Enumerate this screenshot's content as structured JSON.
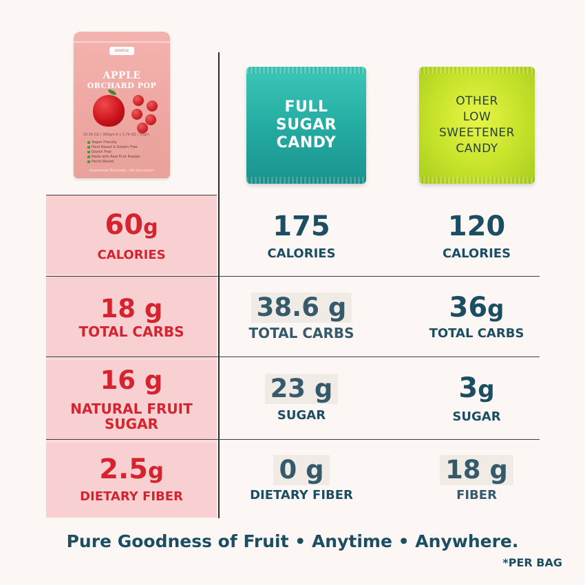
{
  "products": {
    "apple_bag": {
      "brand": "SIMPLE",
      "name_line1": "APPLE",
      "name_line2": "ORCHARD POP",
      "net_weight": "10.56 OZ / 300gm      6 x 1.76 OZ / 50gm",
      "claims": [
        "Vegan Friendly",
        "Plant Based & Gelatin Free",
        "Gluten Free",
        "Made with Real Fruit Powder",
        "Pectin-Based"
      ],
      "tagline": "Sweetened Naturally · No Sucralose!"
    },
    "full_sugar_bag": {
      "lines": [
        "FULL",
        "SUGAR",
        "CANDY"
      ]
    },
    "low_sweetener_bag": {
      "lines": [
        "OTHER",
        "LOW",
        "SWEETENER",
        "CANDY"
      ]
    }
  },
  "rows": [
    {
      "col1": {
        "value": "60",
        "unit": "g",
        "label": "CALORIES"
      },
      "col2": {
        "value": "175",
        "label": "CALORIES"
      },
      "col3": {
        "value": "120",
        "label": "CALORIES"
      }
    },
    {
      "col1": {
        "value": "18 g",
        "label": "TOTAL CARBS"
      },
      "col2": {
        "value": "38.6 g",
        "label": "TOTAL CARBS"
      },
      "col3": {
        "value": "36",
        "unit": "g",
        "label": "TOTAL CARBS"
      }
    },
    {
      "col1": {
        "value": "16 g",
        "label_line1": "NATURAL FRUIT",
        "label_line2": "SUGAR"
      },
      "col2": {
        "value": "23 g",
        "label": "SUGAR"
      },
      "col3": {
        "value": "3",
        "unit": "g",
        "label": "SUGAR"
      }
    },
    {
      "col1": {
        "value": "2.5",
        "unit": "g",
        "label": "DIETARY FIBER"
      },
      "col2": {
        "value": "0 g",
        "label": "DIETARY FIBER"
      },
      "col3": {
        "value": "18 g",
        "label": "FIBER"
      }
    }
  ],
  "footer": {
    "tagline": "Pure Goodness of Fruit • Anytime • Anywhere.",
    "note": "*PER BAG"
  },
  "colors": {
    "background": "#fcf7f4",
    "pink_column": "#fadadb",
    "red_text": "#d3242f",
    "navy_text": "#1c4e63",
    "teal_bag": "#23a9a0",
    "lime_bag": "#c6e22a"
  }
}
